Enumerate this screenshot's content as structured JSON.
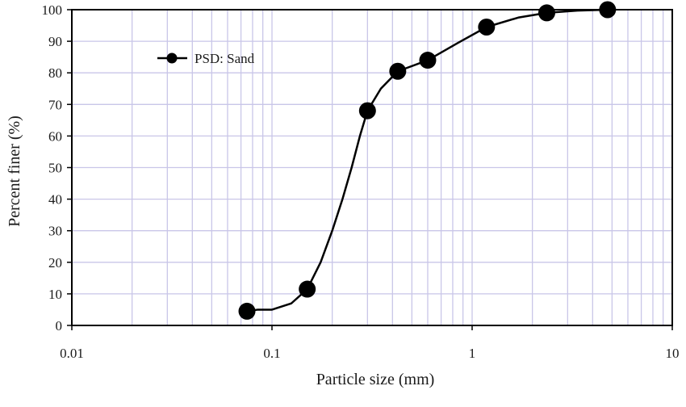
{
  "chart_data": {
    "type": "line",
    "xlabel": "Particle size (mm)",
    "ylabel": "Percent finer (%)",
    "x_scale": "log",
    "xlim": [
      0.01,
      10
    ],
    "ylim": [
      0,
      100
    ],
    "grid": true,
    "legend_position": "top-left",
    "x_ticks": [
      {
        "value": 0.01,
        "label": "0.01"
      },
      {
        "value": 0.1,
        "label": "0.1"
      },
      {
        "value": 1,
        "label": "1"
      },
      {
        "value": 10,
        "label": "10"
      }
    ],
    "y_ticks": [
      {
        "value": 0,
        "label": "0"
      },
      {
        "value": 10,
        "label": "10"
      },
      {
        "value": 20,
        "label": "20"
      },
      {
        "value": 30,
        "label": "30"
      },
      {
        "value": 40,
        "label": "40"
      },
      {
        "value": 50,
        "label": "50"
      },
      {
        "value": 60,
        "label": "60"
      },
      {
        "value": 70,
        "label": "70"
      },
      {
        "value": 80,
        "label": "80"
      },
      {
        "value": 90,
        "label": "90"
      },
      {
        "value": 100,
        "label": "100"
      }
    ],
    "series": [
      {
        "name": "PSD: Sand",
        "color": "#000000",
        "marker": "circle",
        "points": [
          {
            "x": 0.075,
            "y": 4.5
          },
          {
            "x": 0.15,
            "y": 11.5
          },
          {
            "x": 0.3,
            "y": 68
          },
          {
            "x": 0.425,
            "y": 80.5
          },
          {
            "x": 0.6,
            "y": 84
          },
          {
            "x": 1.18,
            "y": 94.5
          },
          {
            "x": 2.36,
            "y": 99
          },
          {
            "x": 4.75,
            "y": 100
          }
        ],
        "curve": [
          {
            "x": 0.075,
            "y": 4.5
          },
          {
            "x": 0.085,
            "y": 5
          },
          {
            "x": 0.1,
            "y": 5
          },
          {
            "x": 0.125,
            "y": 7
          },
          {
            "x": 0.15,
            "y": 11.5
          },
          {
            "x": 0.175,
            "y": 20
          },
          {
            "x": 0.2,
            "y": 30
          },
          {
            "x": 0.225,
            "y": 40
          },
          {
            "x": 0.25,
            "y": 50
          },
          {
            "x": 0.275,
            "y": 60
          },
          {
            "x": 0.3,
            "y": 68
          },
          {
            "x": 0.35,
            "y": 75
          },
          {
            "x": 0.425,
            "y": 80.5
          },
          {
            "x": 0.6,
            "y": 84
          },
          {
            "x": 0.85,
            "y": 89.5
          },
          {
            "x": 1.18,
            "y": 94.5
          },
          {
            "x": 1.7,
            "y": 97.5
          },
          {
            "x": 2.36,
            "y": 99
          },
          {
            "x": 3.35,
            "y": 99.7
          },
          {
            "x": 4.75,
            "y": 100
          }
        ]
      }
    ]
  }
}
